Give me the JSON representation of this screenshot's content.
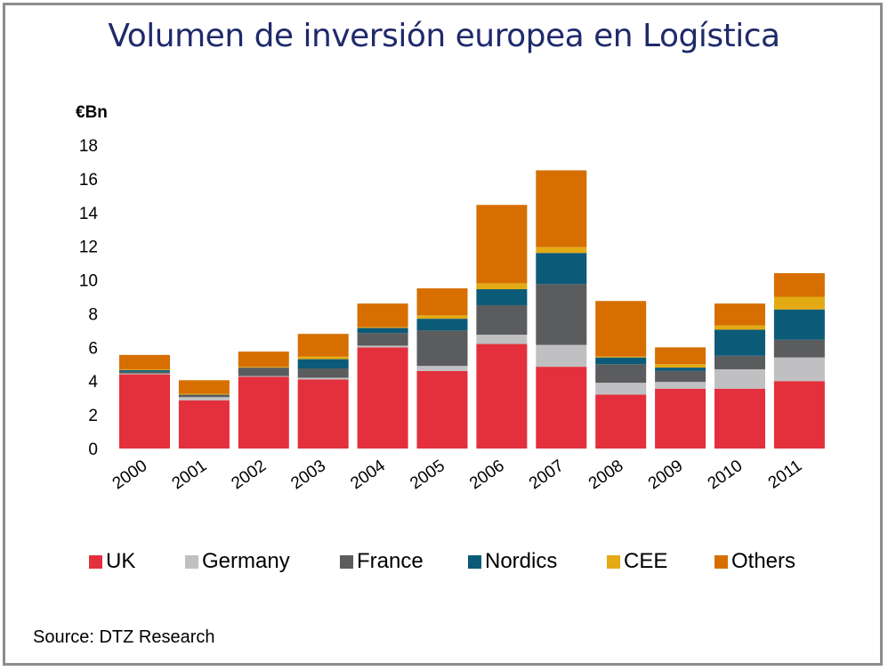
{
  "chart_data": {
    "type": "bar",
    "stacked": true,
    "title": "Volumen de inversión europea en Logística",
    "ylabel": "€Bn",
    "xlabel": "",
    "ylim": [
      0,
      18
    ],
    "yticks": [
      "0",
      "2",
      "4",
      "6",
      "8",
      "10",
      "12",
      "14",
      "16",
      "18"
    ],
    "grid": false,
    "legend_position": "bottom",
    "categories": [
      "2000",
      "2001",
      "2002",
      "2003",
      "2004",
      "2005",
      "2006",
      "2007",
      "2008",
      "2009",
      "2010",
      "2011"
    ],
    "series": [
      {
        "name": "UK",
        "color": "#e3303c",
        "values": [
          4.4,
          2.85,
          4.25,
          4.1,
          6.0,
          4.6,
          6.2,
          4.85,
          3.2,
          3.55,
          3.55,
          4.0
        ]
      },
      {
        "name": "Germany",
        "color": "#c0c0c2",
        "values": [
          0.05,
          0.2,
          0.05,
          0.1,
          0.1,
          0.3,
          0.55,
          1.3,
          0.7,
          0.4,
          1.15,
          1.4
        ]
      },
      {
        "name": "France",
        "color": "#5b5c5e",
        "values": [
          0.1,
          0.15,
          0.5,
          0.55,
          0.75,
          2.1,
          1.75,
          3.6,
          1.1,
          0.65,
          0.8,
          1.05
        ]
      },
      {
        "name": "Nordics",
        "color": "#0b5a78",
        "values": [
          0.1,
          0.0,
          0.0,
          0.55,
          0.3,
          0.7,
          0.95,
          1.85,
          0.4,
          0.2,
          1.55,
          1.8
        ]
      },
      {
        "name": "CEE",
        "color": "#e3aa14",
        "values": [
          0.05,
          0.05,
          0.05,
          0.15,
          0.05,
          0.2,
          0.35,
          0.35,
          0.05,
          0.2,
          0.25,
          0.75
        ]
      },
      {
        "name": "Others",
        "color": "#d66f00",
        "values": [
          0.85,
          0.8,
          0.9,
          1.35,
          1.4,
          1.6,
          4.65,
          4.55,
          3.3,
          1.0,
          1.3,
          1.4
        ]
      }
    ],
    "source": "Source: DTZ Research"
  }
}
